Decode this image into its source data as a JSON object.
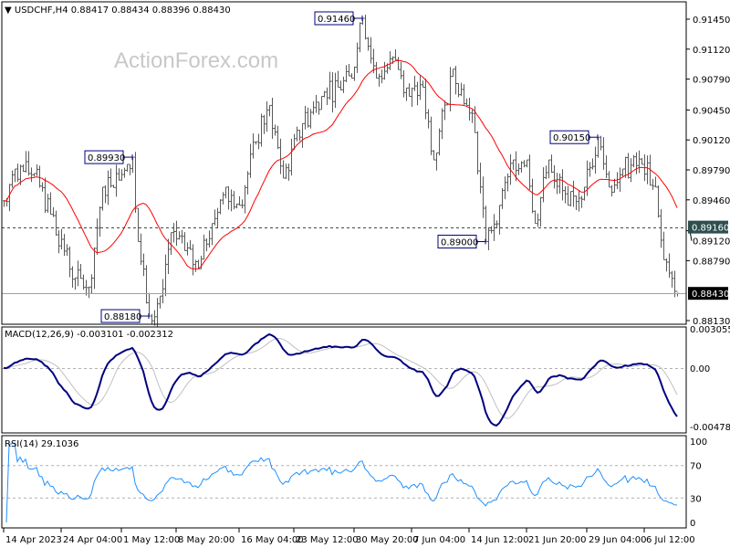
{
  "header": {
    "symbol_line": "USDCHF,H4  0.88417 0.88434 0.88396 0.88430"
  },
  "watermark": "ActionForex.com",
  "chart_data": [
    {
      "type": "ohlc-bar",
      "symbol": "USDCHF",
      "timeframe": "H4",
      "ohlc_last": {
        "open": 0.88417,
        "high": 0.88434,
        "low": 0.88396,
        "close": 0.8843
      },
      "ylim": [
        0.8813,
        0.9155
      ],
      "y_ticks": [
        "0.91450",
        "0.91120",
        "0.90790",
        "0.90450",
        "0.90120",
        "0.89790",
        "0.89460",
        "0.89120",
        "0.88790",
        "0.88130"
      ],
      "price_path": [
        [
          0,
          0.8945
        ],
        [
          4,
          0.898
        ],
        [
          11,
          0.8975
        ],
        [
          17,
          0.893
        ],
        [
          26,
          0.886
        ],
        [
          31,
          0.885
        ],
        [
          36,
          0.896
        ],
        [
          45,
          0.8985
        ],
        [
          47,
          0.8993
        ],
        [
          49,
          0.89
        ],
        [
          53,
          0.8818
        ],
        [
          57,
          0.884
        ],
        [
          61,
          0.891
        ],
        [
          66,
          0.889
        ],
        [
          71,
          0.887
        ],
        [
          76,
          0.892
        ],
        [
          81,
          0.896
        ],
        [
          86,
          0.894
        ],
        [
          92,
          0.901
        ],
        [
          97,
          0.905
        ],
        [
          102,
          0.897
        ],
        [
          109,
          0.903
        ],
        [
          116,
          0.906
        ],
        [
          122,
          0.907
        ],
        [
          127,
          0.908
        ],
        [
          131,
          0.9146
        ],
        [
          136,
          0.908
        ],
        [
          143,
          0.91
        ],
        [
          148,
          0.906
        ],
        [
          153,
          0.907
        ],
        [
          157,
          0.899
        ],
        [
          164,
          0.909
        ],
        [
          169,
          0.905
        ],
        [
          172,
          0.902
        ],
        [
          176,
          0.89
        ],
        [
          181,
          0.894
        ],
        [
          186,
          0.899
        ],
        [
          191,
          0.899
        ],
        [
          194,
          0.892
        ],
        [
          199,
          0.899
        ],
        [
          206,
          0.894
        ],
        [
          212,
          0.896
        ],
        [
          217,
          0.9015
        ],
        [
          221,
          0.896
        ],
        [
          226,
          0.898
        ],
        [
          233,
          0.8985
        ],
        [
          238,
          0.896
        ],
        [
          241,
          0.888
        ],
        [
          246,
          0.8843
        ]
      ],
      "moving_average": {
        "color": "#FF0000"
      },
      "horizontal_lines": [
        {
          "price": 0.8916,
          "label": "0.89160",
          "style": "dashed",
          "label_bg": "#2F4F4F"
        },
        {
          "price": 0.8843,
          "label": "0.88430",
          "style": "solid",
          "label_bg": "#000000"
        }
      ],
      "annotations": [
        {
          "bar": 131,
          "price": 0.9146,
          "label": "0.91460"
        },
        {
          "bar": 47,
          "price": 0.8993,
          "label": "0.89930"
        },
        {
          "bar": 53,
          "price": 0.8818,
          "label": "0.88180"
        },
        {
          "bar": 176,
          "price": 0.89,
          "label": "0.89000"
        },
        {
          "bar": 217,
          "price": 0.9015,
          "label": "0.90150"
        }
      ],
      "x_ticks": [
        {
          "bar": 0,
          "label": "14 Apr 2023"
        },
        {
          "bar": 21,
          "label": "24 Apr 04:00"
        },
        {
          "bar": 43,
          "label": "1 May 12:00"
        },
        {
          "bar": 63,
          "label": "8 May 20:00"
        },
        {
          "bar": 86,
          "label": "16 May 04:00"
        },
        {
          "bar": 106,
          "label": "23 May 12:00"
        },
        {
          "bar": 128,
          "label": "30 May 20:00"
        },
        {
          "bar": 149,
          "label": "7 Jun 04:00"
        },
        {
          "bar": 170,
          "label": "14 Jun 12:00"
        },
        {
          "bar": 191,
          "label": "21 Jun 20:00"
        },
        {
          "bar": 213,
          "label": "29 Jun 04:00"
        },
        {
          "bar": 234,
          "label": "6 Jul 12:00"
        }
      ]
    },
    {
      "type": "line",
      "title": "MACD(12,26,9) -0.003101 -0.002312",
      "ylim": [
        -0.004782,
        0.003055
      ],
      "y_ticks": [
        "0.003055",
        "0.00",
        "-0.004782"
      ],
      "series_colors": {
        "main": "#000080",
        "signal": "#C0C0C0"
      }
    },
    {
      "type": "line",
      "title": "RSI(14) 29.1036",
      "ylim": [
        0,
        100
      ],
      "y_ticks": [
        "100",
        "70",
        "30",
        "0"
      ],
      "levels": [
        70,
        30
      ],
      "color": "#1E90FF"
    }
  ]
}
